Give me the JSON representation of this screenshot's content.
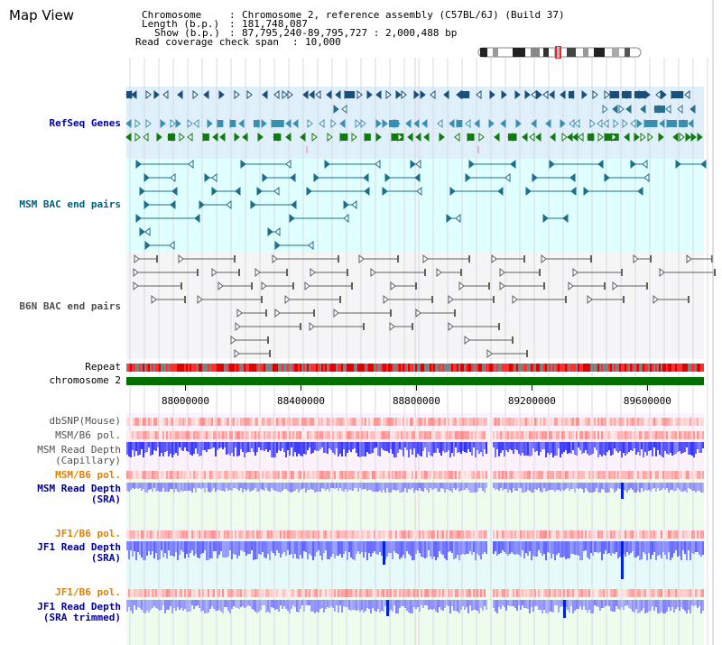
{
  "page": {
    "title": "Map View"
  },
  "info": {
    "chromosome_key": "Chromosome",
    "chromosome_val": "Chromosome 2, reference assembly (C57BL/6J) (Build 37)",
    "length_key": "Length (b.p.)",
    "length_val": "181,748,087",
    "show_key": "Show (b.p.)",
    "show_val": "87,795,240-89,795,727 : 2,000,488 bp",
    "span_key": "Read coverage check span",
    "span_val": "10,000"
  },
  "tracks": {
    "refseq": "RefSeq Genes",
    "msm_bac": "MSM BAC end pairs",
    "b6n_bac": "B6N BAC end pairs",
    "repeat": "Repeat",
    "chromosome": "chromosome 2",
    "dbsnp": "dbSNP(Mouse)",
    "msm_b6_pol_1": "MSM/B6 pol.",
    "msm_depth_cap_1": "MSM Read Depth",
    "msm_depth_cap_2": "(Capillary)",
    "msm_b6_pol_2": "MSM/B6 pol.",
    "msm_depth_sra_1": "MSM Read Depth",
    "msm_depth_sra_2": "(SRA)",
    "jf1_b6_pol_1": "JF1/B6 pol.",
    "jf1_depth_sra_1": "JF1 Read Depth",
    "jf1_depth_sra_2": "(SRA)",
    "jf1_b6_pol_2": "JF1/B6 pol.",
    "jf1_depth_trim_1": "JF1 Read Depth",
    "jf1_depth_trim_2": "(SRA trimmed)"
  },
  "axis": {
    "ticks": [
      "88000000",
      "88400000",
      "88800000",
      "89200000",
      "89600000"
    ],
    "tick_values": [
      88000000,
      88400000,
      88800000,
      89200000,
      89600000
    ],
    "range": [
      87795240,
      89795727
    ]
  },
  "colors": {
    "refseq_bg": "#dff0fb",
    "msm_bg": "#e0ffff",
    "b6n_bg": "#f5f5f5",
    "chromosome_bar": "#007000",
    "repeat": "#e00000",
    "depth_blue": "#2020ff",
    "pol_red": "#ff4040"
  },
  "icons": {
    "ideogram": "chromosome-ideogram"
  }
}
